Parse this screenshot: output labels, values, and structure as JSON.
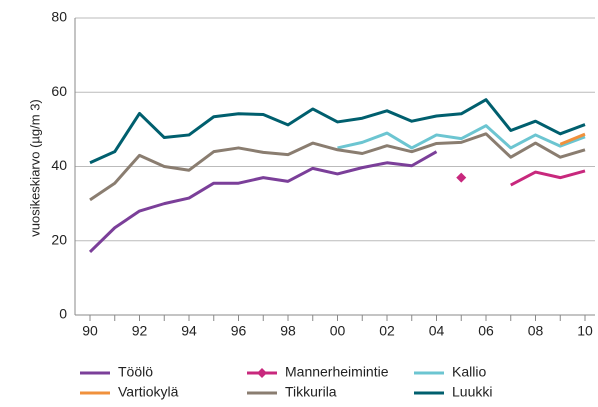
{
  "chart_data": {
    "type": "line",
    "y_label": "vuosikeskiarvo (µg/m 3)",
    "categories": [
      "90",
      null,
      "92",
      null,
      "94",
      null,
      "96",
      null,
      "98",
      null,
      "00",
      null,
      "02",
      null,
      "04",
      null,
      "06",
      null,
      "08",
      null,
      "10"
    ],
    "ylim": [
      0,
      80
    ],
    "yticks": [
      0,
      20,
      40,
      60,
      80
    ],
    "grid": true,
    "legend": "bottom",
    "series": [
      {
        "name": "Töölö",
        "color": "#7b3f99",
        "values": [
          17,
          23.5,
          28,
          30,
          31.5,
          35.5,
          35.5,
          37,
          36,
          39.5,
          38,
          39.7,
          41,
          40.2,
          44,
          null,
          null,
          null,
          null,
          null,
          null
        ]
      },
      {
        "name": "Mannerheimintie",
        "color": "#c8287d",
        "marker": "diamond",
        "values": [
          null,
          null,
          null,
          null,
          null,
          null,
          null,
          null,
          null,
          null,
          null,
          null,
          null,
          null,
          null,
          37,
          null,
          35,
          38.5,
          37,
          38.8
        ]
      },
      {
        "name": "Kallio",
        "color": "#6cc5d1",
        "values": [
          null,
          null,
          null,
          null,
          null,
          null,
          null,
          null,
          null,
          null,
          45,
          46.5,
          49,
          45,
          48.5,
          47.5,
          51,
          45,
          48.5,
          45.5,
          48
        ]
      },
      {
        "name": "Vartiokylä",
        "color": "#f0913c",
        "values": [
          null,
          null,
          null,
          null,
          null,
          null,
          null,
          null,
          null,
          null,
          null,
          null,
          null,
          null,
          null,
          null,
          null,
          null,
          null,
          46,
          48.7
        ]
      },
      {
        "name": "Tikkurila",
        "color": "#8a7d70",
        "values": [
          31,
          35.5,
          43,
          40,
          39,
          44,
          45,
          43.8,
          43.2,
          46.3,
          44.5,
          43.5,
          45.6,
          44,
          46.2,
          46.5,
          48.8,
          42.5,
          46.3,
          42.5,
          44.5
        ]
      },
      {
        "name": "Luukki",
        "color": "#005f6e",
        "values": [
          41,
          44,
          54.3,
          47.8,
          48.5,
          53.4,
          54.2,
          54,
          51.2,
          55.5,
          52,
          53,
          55,
          52.2,
          53.6,
          54.2,
          58,
          49.7,
          52.2,
          48.8,
          51.3
        ]
      }
    ]
  }
}
